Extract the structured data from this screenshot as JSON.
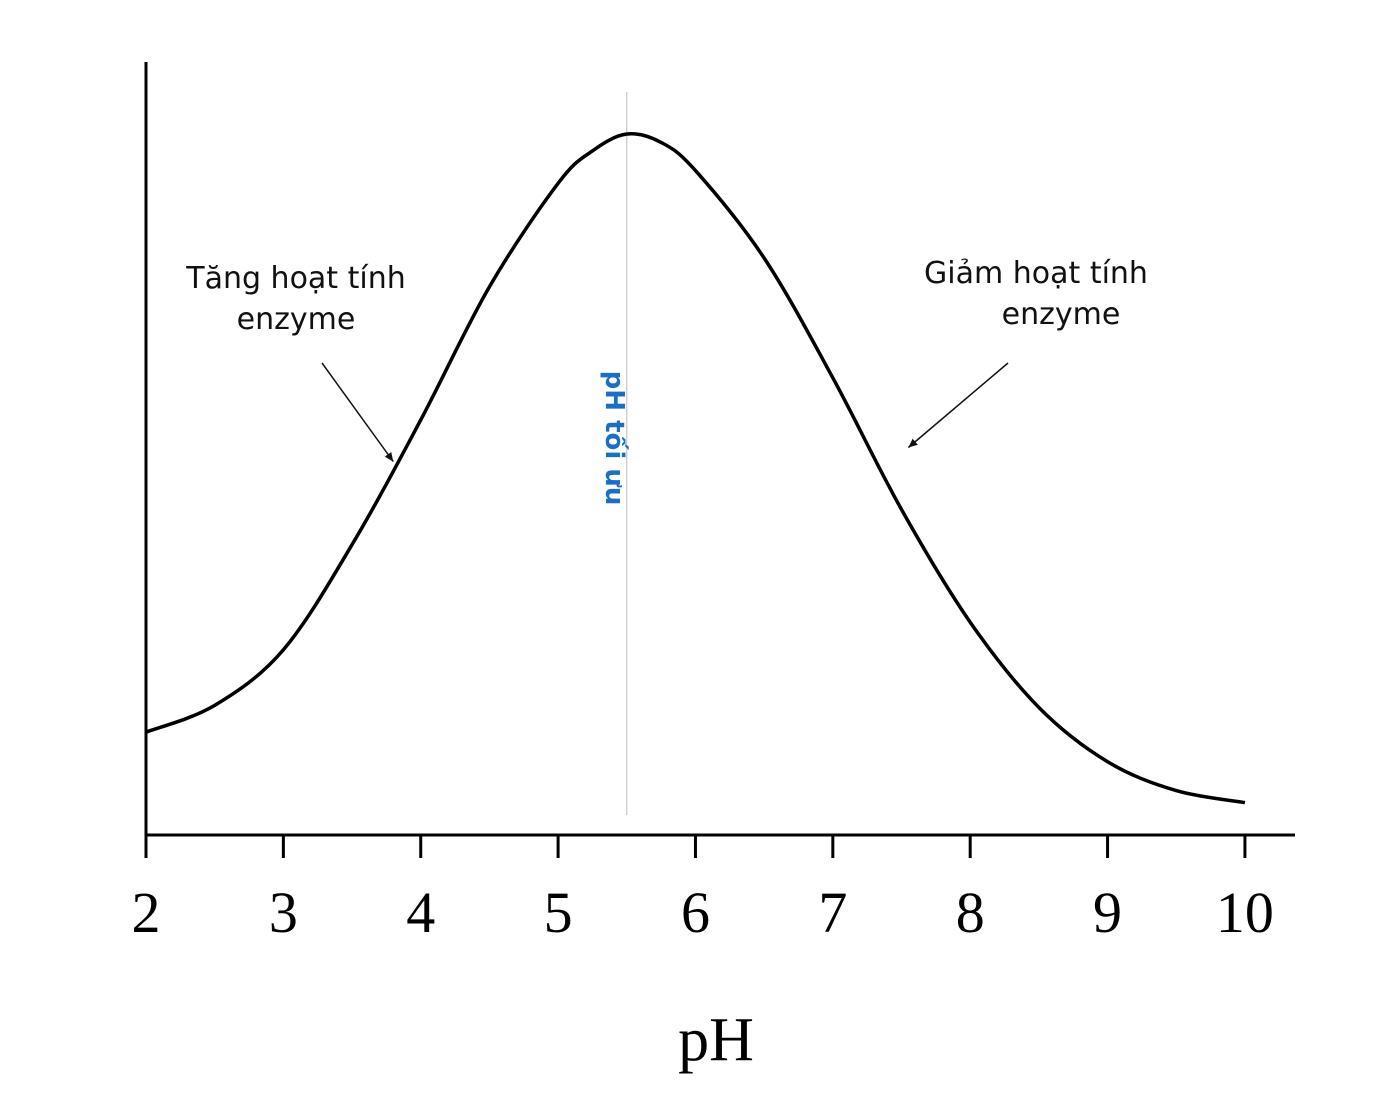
{
  "chart_data": {
    "type": "line",
    "title": "",
    "xlabel": "pH",
    "ylabel": "",
    "xlim": [
      2,
      10.35
    ],
    "ylim": [
      0,
      1.1
    ],
    "x_ticks": [
      2,
      3,
      4,
      5,
      6,
      7,
      8,
      9,
      10
    ],
    "x_tick_labels": [
      "2",
      "3",
      "4",
      "5",
      "6",
      "7",
      "8",
      "9",
      "10"
    ],
    "grid": false,
    "legend": "none",
    "series": [
      {
        "color": "#000000",
        "x": [
          2.0,
          2.5,
          3.0,
          3.5,
          4.0,
          4.5,
          5.0,
          5.25,
          5.5,
          5.75,
          6.0,
          6.5,
          7.0,
          7.5,
          8.0,
          8.5,
          9.0,
          9.5,
          10.0
        ],
        "y": [
          0.146,
          0.184,
          0.263,
          0.412,
          0.589,
          0.778,
          0.925,
          0.971,
          0.995,
          0.983,
          0.943,
          0.819,
          0.649,
          0.462,
          0.302,
          0.181,
          0.104,
          0.063,
          0.046
        ]
      }
    ],
    "reference_line": {
      "x": 5.5,
      "label": "pH tối ưu",
      "color": "#1a6fc4"
    },
    "annotations": [
      {
        "lines": [
          "Tăng hoạt tính",
          "enzyme"
        ],
        "arrow_to": {
          "x": 3.8,
          "y": 0.53
        }
      },
      {
        "lines": [
          "Giảm hoạt tính",
          "enzyme"
        ],
        "arrow_to": {
          "x": 7.55,
          "y": 0.55
        }
      }
    ]
  }
}
